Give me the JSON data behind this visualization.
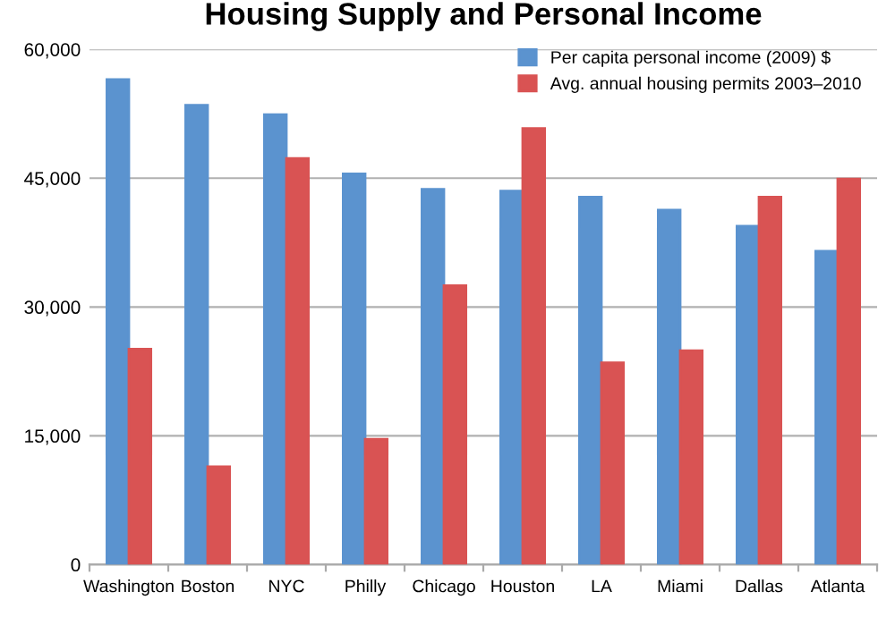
{
  "chart_data": {
    "type": "bar",
    "title": "Housing Supply and Personal Income",
    "categories": [
      "Washington",
      "Boston",
      "NYC",
      "Philly",
      "Chicago",
      "Houston",
      "LA",
      "Miami",
      "Dallas",
      "Atlanta"
    ],
    "series": [
      {
        "name": "Per capita personal income (2009) $",
        "color": "#5b93cf",
        "values": [
          56500,
          53500,
          52400,
          45500,
          43700,
          43500,
          42800,
          41300,
          39400,
          36500
        ]
      },
      {
        "name": "Avg. annual housing permits 2003–2010",
        "color": "#d95353",
        "values": [
          25100,
          11400,
          47300,
          14600,
          32500,
          50800,
          23500,
          24900,
          42800,
          44900
        ]
      }
    ],
    "ylim": [
      0,
      60000
    ],
    "yticks": [
      {
        "value": 0,
        "label": "0"
      },
      {
        "value": 15000,
        "label": "15,000"
      },
      {
        "value": 30000,
        "label": "30,000"
      },
      {
        "value": 45000,
        "label": "45,000"
      },
      {
        "value": 60000,
        "label": "60,000"
      }
    ],
    "grid": "y",
    "legend": "top right"
  }
}
